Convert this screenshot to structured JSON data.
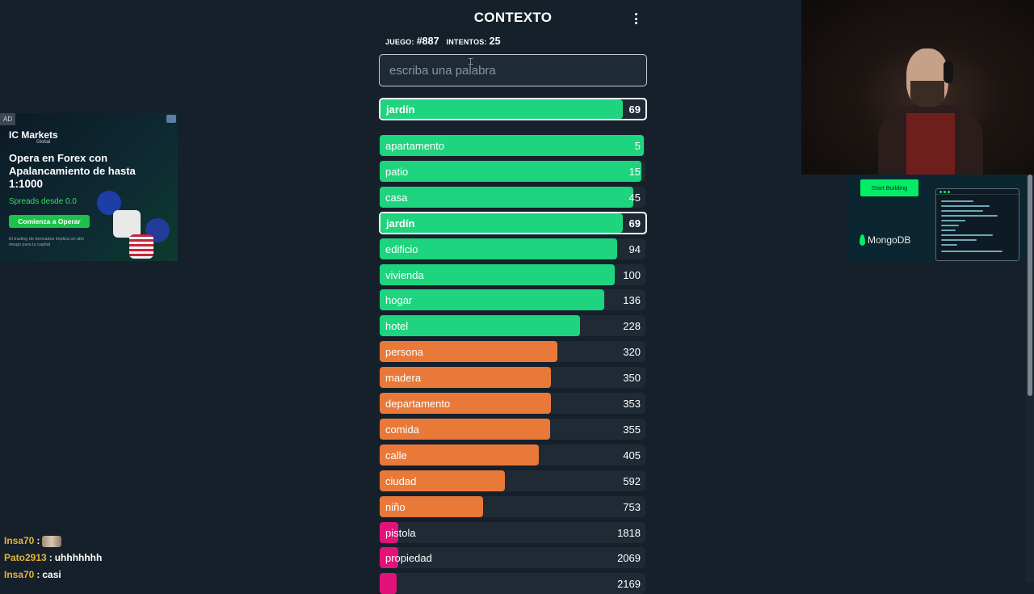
{
  "game": {
    "title": "CONTEXTO",
    "game_label": "JUEGO:",
    "game_number": "#887",
    "attempts_label": "INTENTOS:",
    "attempts_count": "25",
    "input_placeholder": "escriba una palabra",
    "max_distance": 2169,
    "current_guess": {
      "word": "jardín",
      "distance": 69,
      "color": "#1ed47e"
    },
    "guesses": [
      {
        "word": "apartamento",
        "distance": 5,
        "fill": 0.994,
        "color": "#1ed47e"
      },
      {
        "word": "patio",
        "distance": 15,
        "fill": 0.985,
        "color": "#1ed47e"
      },
      {
        "word": "casa",
        "distance": 45,
        "fill": 0.955,
        "color": "#1ed47e"
      },
      {
        "word": "jardín",
        "distance": 69,
        "fill": 0.915,
        "color": "#1ed47e",
        "current": true
      },
      {
        "word": "edificio",
        "distance": 94,
        "fill": 0.893,
        "color": "#1ed47e"
      },
      {
        "word": "vivienda",
        "distance": 100,
        "fill": 0.885,
        "color": "#1ed47e"
      },
      {
        "word": "hogar",
        "distance": 136,
        "fill": 0.845,
        "color": "#1ed47e"
      },
      {
        "word": "hotel",
        "distance": 228,
        "fill": 0.753,
        "color": "#1ed47e"
      },
      {
        "word": "persona",
        "distance": 320,
        "fill": 0.67,
        "color": "#e97939"
      },
      {
        "word": "madera",
        "distance": 350,
        "fill": 0.645,
        "color": "#e97939"
      },
      {
        "word": "departamento",
        "distance": 353,
        "fill": 0.643,
        "color": "#e97939"
      },
      {
        "word": "comida",
        "distance": 355,
        "fill": 0.64,
        "color": "#e97939"
      },
      {
        "word": "calle",
        "distance": 405,
        "fill": 0.6,
        "color": "#e97939"
      },
      {
        "word": "ciudad",
        "distance": 592,
        "fill": 0.47,
        "color": "#e97939"
      },
      {
        "word": "niño",
        "distance": 753,
        "fill": 0.39,
        "color": "#e97939"
      },
      {
        "word": "pistola",
        "distance": 1818,
        "fill": 0.07,
        "color": "#e2127a"
      },
      {
        "word": "propiedad",
        "distance": 2069,
        "fill": 0.07,
        "color": "#e2127a"
      },
      {
        "word": "",
        "distance": 2169,
        "fill": 0.065,
        "color": "#e2127a"
      }
    ]
  },
  "ad_left": {
    "tag": "AD",
    "brand": "IC Markets",
    "brand_sub": "Global",
    "headline": "Opera en Forex con Apalancamiento de hasta",
    "leverage": "1:1000",
    "spreads": "Spreads desde 0.0",
    "cta": "Comienza a Operar",
    "fine_print": "El trading de derivados implica un alto riesgo para tu capital",
    "accent_color": "#1ec24b"
  },
  "ad_right": {
    "cta": "Start Building",
    "brand": "MongoDB",
    "accent_color": "#00ed64"
  },
  "chat": [
    {
      "user": "Insa70",
      "message": "",
      "emote": true
    },
    {
      "user": "Pato2913",
      "message": "uhhhhhhh",
      "emote": false
    },
    {
      "user": "Insa70",
      "message": "casi",
      "emote": false
    }
  ],
  "colors": {
    "background": "#15202b",
    "close": "#1ed47e",
    "medium": "#e97939",
    "far": "#e2127a"
  }
}
